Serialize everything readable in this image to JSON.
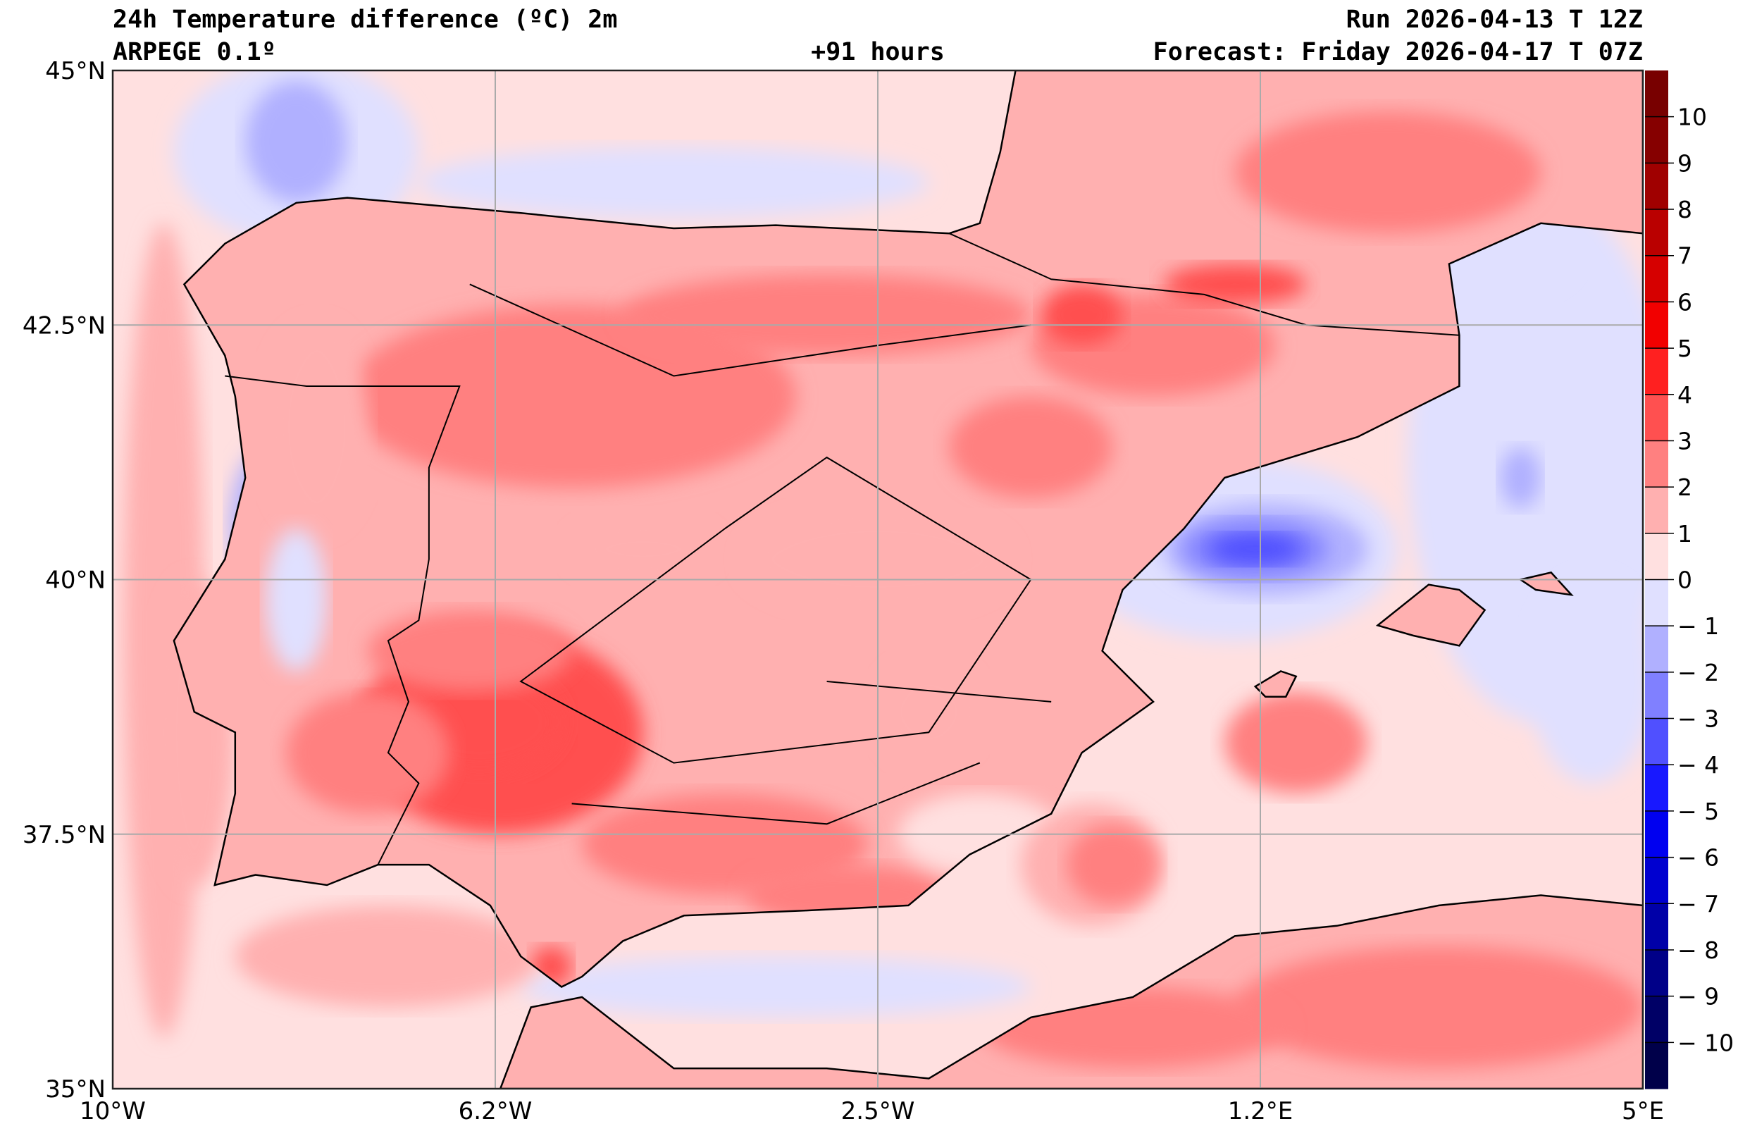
{
  "header": {
    "title": "24h Temperature difference (ºC) 2m",
    "model": "ARPEGE 0.1º",
    "lead": "+91 hours",
    "run": "Run 2026-04-13 T 12Z",
    "forecast": "Forecast: Friday 2026-04-17 T 07Z"
  },
  "chart_data": {
    "type": "heatmap",
    "title": "24h Temperature difference (ºC) 2m",
    "units": "ºC",
    "extent": {
      "lon": [
        -10,
        5
      ],
      "lat": [
        35,
        45
      ]
    },
    "x_ticks": [
      {
        "value": -10,
        "label": "10°W"
      },
      {
        "value": -6.25,
        "label": "6.2°W"
      },
      {
        "value": -2.5,
        "label": "2.5°W"
      },
      {
        "value": 1.25,
        "label": "1.2°E"
      },
      {
        "value": 5,
        "label": "5°E"
      }
    ],
    "y_ticks": [
      {
        "value": 35,
        "label": "35°N"
      },
      {
        "value": 37.5,
        "label": "37.5°N"
      },
      {
        "value": 40,
        "label": "40°N"
      },
      {
        "value": 42.5,
        "label": "42.5°N"
      },
      {
        "value": 45,
        "label": "45°N"
      }
    ],
    "grid": true,
    "colorbar": {
      "placement": "right",
      "range": [
        -11,
        11
      ],
      "bands": [
        {
          "min": 10,
          "max": 11,
          "color": "#780000"
        },
        {
          "min": 9,
          "max": 10,
          "color": "#860000"
        },
        {
          "min": 8,
          "max": 9,
          "color": "#a00000"
        },
        {
          "min": 7,
          "max": 8,
          "color": "#ba0000"
        },
        {
          "min": 6,
          "max": 7,
          "color": "#d60000"
        },
        {
          "min": 5,
          "max": 6,
          "color": "#f20000"
        },
        {
          "min": 4,
          "max": 5,
          "color": "#ff2020"
        },
        {
          "min": 3,
          "max": 4,
          "color": "#ff5050"
        },
        {
          "min": 2,
          "max": 3,
          "color": "#ff8080"
        },
        {
          "min": 1,
          "max": 2,
          "color": "#ffb0b0"
        },
        {
          "min": 0,
          "max": 1,
          "color": "#ffe0e0"
        },
        {
          "min": -1,
          "max": 0,
          "color": "#e0e0ff"
        },
        {
          "min": -2,
          "max": -1,
          "color": "#b0b0ff"
        },
        {
          "min": -3,
          "max": -2,
          "color": "#8080ff"
        },
        {
          "min": -4,
          "max": -3,
          "color": "#5050ff"
        },
        {
          "min": -5,
          "max": -4,
          "color": "#1818ff"
        },
        {
          "min": -6,
          "max": -5,
          "color": "#0000f0"
        },
        {
          "min": -7,
          "max": -6,
          "color": "#0000d0"
        },
        {
          "min": -8,
          "max": -7,
          "color": "#0000a8"
        },
        {
          "min": -9,
          "max": -8,
          "color": "#000088"
        },
        {
          "min": -10,
          "max": -9,
          "color": "#000066"
        },
        {
          "min": -11,
          "max": -10,
          "color": "#00004a"
        }
      ],
      "ticks": [
        {
          "value": 10,
          "label": "10"
        },
        {
          "value": 9,
          "label": "9"
        },
        {
          "value": 8,
          "label": "8"
        },
        {
          "value": 7,
          "label": "7"
        },
        {
          "value": 6,
          "label": "6"
        },
        {
          "value": 5,
          "label": "5"
        },
        {
          "value": 4,
          "label": "4"
        },
        {
          "value": 3,
          "label": "3"
        },
        {
          "value": 2,
          "label": "2"
        },
        {
          "value": 1,
          "label": "1"
        },
        {
          "value": 0,
          "label": "0"
        },
        {
          "value": -1,
          "label": "− 1"
        },
        {
          "value": -2,
          "label": "− 2"
        },
        {
          "value": -3,
          "label": "− 3"
        },
        {
          "value": -4,
          "label": "− 4"
        },
        {
          "value": -5,
          "label": "− 5"
        },
        {
          "value": -6,
          "label": "− 6"
        },
        {
          "value": -7,
          "label": "− 7"
        },
        {
          "value": -8,
          "label": "− 8"
        },
        {
          "value": -9,
          "label": "− 9"
        },
        {
          "value": -10,
          "label": "− 10"
        }
      ]
    }
  }
}
